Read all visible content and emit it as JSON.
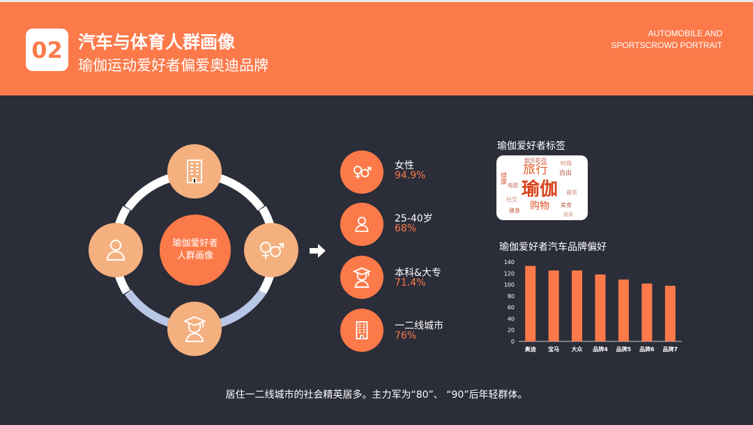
{
  "header": {
    "number": "02",
    "title": "汽车与体育人群画像",
    "subtitle": "瑜伽运动爱好者偏爱奥迪品牌",
    "english_line1": "AUTOMOBILE AND",
    "english_line2": "SPORTSCROWD PORTRAIT"
  },
  "diagram": {
    "center_line1": "瑜伽爱好者",
    "center_line2": "人群画像",
    "nodes": [
      "building-icon",
      "gender-icon",
      "graduate-icon",
      "person-icon"
    ]
  },
  "stats": [
    {
      "label": "女性",
      "value": "94.9%",
      "icon": "gender-icon"
    },
    {
      "label": "25-40岁",
      "value": "68%",
      "icon": "person-icon"
    },
    {
      "label": "本科&大专",
      "value": "71.4%",
      "icon": "graduate-icon"
    },
    {
      "label": "一二线城市",
      "value": "76%",
      "icon": "building-icon"
    }
  ],
  "wordcloud": {
    "title": "瑜伽爱好者标签",
    "words": [
      "旅行",
      "瑜伽",
      "购物",
      "健康",
      "自由",
      "时尚",
      "健身",
      "美食",
      "社交",
      "电影",
      "音乐",
      "阅读",
      "娱乐影视"
    ]
  },
  "chart_title": "瑜伽爱好者汽车品牌偏好",
  "chart_data": {
    "type": "bar",
    "categories": [
      "奥迪",
      "宝马",
      "大众",
      "品牌4",
      "品牌5",
      "品牌6",
      "品牌7"
    ],
    "values": [
      133,
      125,
      125,
      118,
      109,
      102,
      98
    ],
    "ylim": [
      0,
      140
    ],
    "yticks": [
      "0",
      "20",
      "40",
      "60",
      "80",
      "100",
      "120",
      "140"
    ],
    "bar_color": "#fc7a4a"
  },
  "footer": "居住一二线城市的社会精英居多。主力军为“80”、 “90”后年轻群体。",
  "colors": {
    "accent": "#fc7a4a",
    "light_accent": "#f5b07f",
    "background": "#2b2d38"
  }
}
